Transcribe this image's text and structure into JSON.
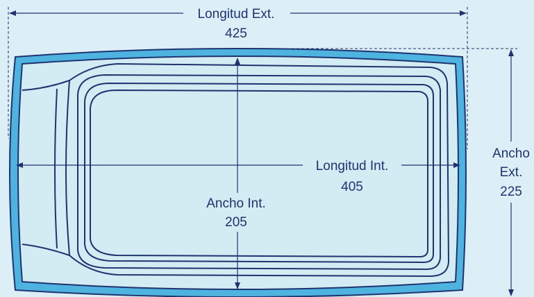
{
  "colors": {
    "background": "#dceef6",
    "pool_rim": "#4fb3e0",
    "pool_fill": "#d3ebf2",
    "line": "#1e3470"
  },
  "dimensions": {
    "longitud_ext": {
      "label": "Longitud Ext.",
      "value": "425"
    },
    "longitud_int": {
      "label": "Longitud Int.",
      "value": "405"
    },
    "ancho_int": {
      "label": "Ancho Int.",
      "value": "205"
    },
    "ancho_ext": {
      "label_line1": "Ancho",
      "label_line2": "Ext.",
      "value": "225"
    }
  }
}
